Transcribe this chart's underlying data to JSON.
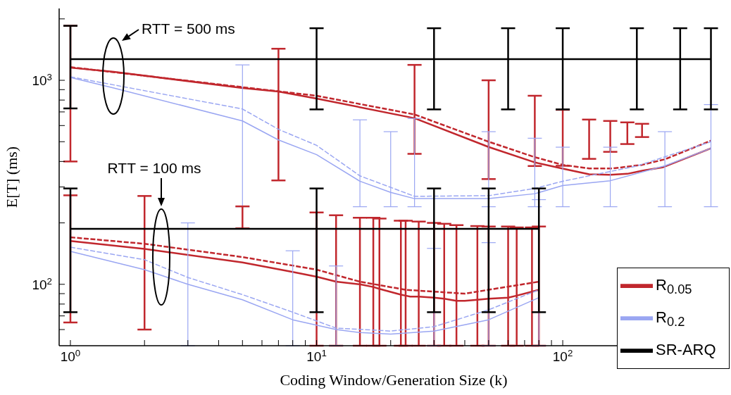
{
  "chart_data": {
    "type": "line",
    "xlabel": "Coding Window/Generation Size (k)",
    "ylabel": "E[T] (ms)",
    "log": "xy",
    "xlim": [
      0.9,
      470
    ],
    "ylim": [
      50,
      2250
    ],
    "xticks": [
      {
        "value": 1,
        "label": "10$^{0}$"
      },
      {
        "value": 2,
        "label": null
      },
      {
        "value": 3,
        "label": null
      },
      {
        "value": 4,
        "label": null
      },
      {
        "value": 5,
        "label": null
      },
      {
        "value": 6,
        "label": null
      },
      {
        "value": 7,
        "label": null
      },
      {
        "value": 8,
        "label": null
      },
      {
        "value": 9,
        "label": null
      },
      {
        "value": 10,
        "label": "10$^{1}$"
      },
      {
        "value": 20,
        "label": null
      },
      {
        "value": 30,
        "label": null
      },
      {
        "value": 40,
        "label": null
      },
      {
        "value": 50,
        "label": null
      },
      {
        "value": 60,
        "label": null
      },
      {
        "value": 70,
        "label": null
      },
      {
        "value": 80,
        "label": null
      },
      {
        "value": 90,
        "label": null
      },
      {
        "value": 100,
        "label": "10$^{2}$"
      },
      {
        "value": 200,
        "label": null
      },
      {
        "value": 300,
        "label": null
      },
      {
        "value": 400,
        "label": null
      }
    ],
    "yticks": [
      {
        "value": 60,
        "label": null
      },
      {
        "value": 70,
        "label": null
      },
      {
        "value": 80,
        "label": null
      },
      {
        "value": 90,
        "label": null
      },
      {
        "value": 100,
        "label": "10$^{2}$"
      },
      {
        "value": 200,
        "label": null
      },
      {
        "value": 300,
        "label": null
      },
      {
        "value": 400,
        "label": null
      },
      {
        "value": 500,
        "label": null
      },
      {
        "value": 600,
        "label": null
      },
      {
        "value": 700,
        "label": null
      },
      {
        "value": 800,
        "label": null
      },
      {
        "value": 900,
        "label": null
      },
      {
        "value": 1000,
        "label": "10$^{3}$"
      },
      {
        "value": 2000,
        "label": null
      }
    ],
    "legend": "bottom right",
    "marker": "none",
    "annotations": [
      "RTT = 500 ms",
      "RTT = 100 ms"
    ],
    "series": [
      {
        "name": "R$_{0.05}$",
        "color": "#c1272d",
        "line_style": "solid",
        "x": [
          1,
          1.5,
          5,
          7,
          10,
          25,
          50,
          77,
          100,
          128,
          156,
          183,
          210,
          256,
          400
        ],
        "values": [
          1153,
          1100,
          917,
          881,
          814,
          652,
          471,
          396,
          369,
          346,
          344,
          348,
          360,
          375,
          464
        ],
        "errors": [
          [
            400,
            1850
          ],
          null,
          null,
          [
            323,
            1428
          ],
          null,
          [
            436,
            1190
          ],
          [
            328,
            1000
          ],
          [
            380,
            840
          ],
          [
            381,
            717
          ],
          [
            412,
            642
          ],
          [
            446,
            632
          ],
          [
            487,
            622
          ],
          [
            527,
            612
          ],
          null,
          null
        ]
      },
      {
        "color": "#c1272d",
        "line_style": "dashed",
        "x": [
          1,
          10,
          25,
          50,
          77,
          100,
          128,
          160,
          210,
          260,
          400
        ],
        "values": [
          1160,
          840,
          680,
          500,
          420,
          385,
          370,
          370,
          385,
          410,
          506
        ]
      },
      {
        "name": "R$_{0.2}$",
        "color": "#9aa6f2",
        "line_style": "solid",
        "x": [
          1,
          1.5,
          5,
          7,
          10,
          15,
          20,
          25,
          50,
          77,
          100,
          156,
          260,
          400
        ],
        "values": [
          1032,
          917,
          632,
          510,
          432,
          320,
          282,
          263,
          263,
          278,
          305,
          322,
          381,
          464
        ],
        "errors": [
          null,
          null,
          [
            240,
            1190
          ],
          null,
          null,
          [
            240,
            640
          ],
          [
            240,
            560
          ],
          [
            240,
            650
          ],
          [
            240,
            560
          ],
          [
            240,
            520
          ],
          [
            240,
            470
          ],
          [
            240,
            470
          ],
          [
            240,
            560
          ],
          [
            240,
            760
          ]
        ]
      },
      {
        "color": "#9aa6f2",
        "line_style": "dashed",
        "x": [
          1,
          5,
          7,
          10,
          15,
          25,
          50,
          77,
          100,
          200,
          400
        ],
        "values": [
          1040,
          723,
          575,
          480,
          340,
          270,
          272,
          295,
          320,
          380,
          500
        ]
      },
      {
        "name": "SR-ARQ",
        "color": "#000000",
        "line_style": "solid",
        "x": [
          1,
          10,
          30,
          60,
          100,
          200,
          300,
          400
        ],
        "values": [
          1270,
          1270,
          1270,
          1270,
          1270,
          1270,
          1270,
          1270
        ],
        "errors": [
          [
            728,
            1850
          ],
          [
            720,
            1800
          ],
          [
            720,
            1800
          ],
          [
            720,
            1800
          ],
          [
            720,
            1800
          ],
          [
            720,
            1800
          ],
          [
            720,
            1800
          ],
          [
            720,
            1800
          ]
        ]
      },
      {
        "color": "#c1272d",
        "line_style": "solid",
        "x": [
          1,
          2,
          5,
          8,
          10,
          12,
          15,
          17,
          18,
          22,
          23,
          24,
          26,
          30,
          33,
          37,
          40,
          45,
          50,
          60,
          65,
          75,
          80
        ],
        "values": [
          163,
          149,
          128,
          115,
          109,
          103,
          100,
          97,
          95,
          89,
          88,
          87,
          87,
          86,
          85,
          83,
          83,
          84,
          85,
          86,
          88,
          92,
          94
        ],
        "errors": [
          [
            65,
            273
          ],
          [
            60,
            271
          ],
          [
            188,
            241
          ],
          null,
          [
            50,
            225
          ],
          [
            50,
            218
          ],
          [
            50,
            212
          ],
          [
            50,
            212
          ],
          [
            50,
            210
          ],
          [
            50,
            205
          ],
          [
            50,
            205
          ],
          null,
          [
            50,
            203
          ],
          [
            50,
            200
          ],
          [
            50,
            198
          ],
          [
            50,
            195
          ],
          null,
          [
            50,
            193
          ],
          [
            50,
            192
          ],
          [
            50,
            192
          ],
          [
            50,
            190
          ],
          [
            50,
            190
          ],
          [
            50,
            192
          ]
        ]
      },
      {
        "color": "#c1272d",
        "line_style": "dashed",
        "x": [
          1,
          2,
          5,
          10,
          15,
          23,
          40,
          80
        ],
        "values": [
          170,
          158,
          136,
          118,
          103,
          94,
          90,
          103
        ]
      },
      {
        "color": "#9aa6f2",
        "line_style": "solid",
        "x": [
          1,
          2,
          3,
          5,
          8,
          12,
          15,
          20,
          30,
          50,
          80
        ],
        "values": [
          145,
          118,
          100,
          84,
          67,
          60,
          58,
          57,
          59,
          67,
          86
        ],
        "errors": [
          null,
          null,
          [
            50,
            200
          ],
          null,
          [
            50,
            146
          ],
          [
            50,
            123
          ],
          null,
          null,
          [
            50,
            150
          ],
          [
            50,
            160
          ],
          [
            50,
            260
          ]
        ]
      },
      {
        "color": "#9aa6f2",
        "line_style": "dashed",
        "x": [
          1,
          2,
          3,
          5,
          8,
          12,
          20,
          30,
          50,
          80
        ],
        "values": [
          152,
          132,
          108,
          89,
          73,
          61,
          59,
          62,
          75,
          94
        ]
      },
      {
        "color": "#000000",
        "line_style": "solid",
        "x": [
          1,
          10,
          30,
          50,
          80
        ],
        "values": [
          187,
          187,
          187,
          187,
          187
        ],
        "errors": [
          [
            73,
            295
          ],
          [
            73,
            295
          ],
          [
            73,
            295
          ],
          [
            73,
            295
          ],
          [
            73,
            295
          ]
        ]
      }
    ]
  }
}
